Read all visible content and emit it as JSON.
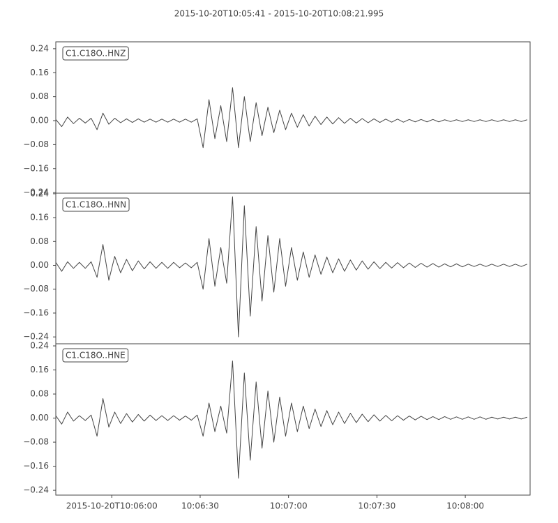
{
  "chart_data": [
    {
      "type": "line",
      "title": "2015-10-20T10:05:41  -  2015-10-20T10:08:21.995",
      "label": "C1.C18O..HNZ",
      "x": [
        0,
        2,
        4,
        6,
        8,
        10,
        12,
        14,
        16,
        18,
        20,
        22,
        24,
        26,
        28,
        30,
        32,
        34,
        36,
        38,
        40,
        42,
        44,
        46,
        48,
        50,
        52,
        54,
        56,
        58,
        60,
        62,
        64,
        66,
        68,
        70,
        72,
        74,
        76,
        78,
        80,
        82,
        84,
        86,
        88,
        90,
        92,
        94,
        96,
        98,
        100,
        102,
        104,
        106,
        108,
        110,
        112,
        114,
        116,
        118,
        120,
        122,
        124,
        126,
        128,
        130,
        132,
        134,
        136,
        138,
        140,
        142,
        144,
        146,
        148,
        150,
        152,
        154,
        156,
        158,
        160
      ],
      "values": [
        0.004,
        -0.02,
        0.012,
        -0.01,
        0.008,
        -0.008,
        0.008,
        -0.03,
        0.025,
        -0.012,
        0.008,
        -0.007,
        0.006,
        -0.006,
        0.006,
        -0.005,
        0.005,
        -0.005,
        0.005,
        -0.005,
        0.005,
        -0.005,
        0.005,
        -0.005,
        0.006,
        -0.09,
        0.07,
        -0.06,
        0.05,
        -0.07,
        0.11,
        -0.09,
        0.08,
        -0.07,
        0.06,
        -0.05,
        0.045,
        -0.04,
        0.035,
        -0.03,
        0.025,
        -0.022,
        0.02,
        -0.018,
        0.015,
        -0.013,
        0.012,
        -0.011,
        0.01,
        -0.009,
        0.008,
        -0.008,
        0.007,
        -0.007,
        0.006,
        -0.006,
        0.005,
        -0.005,
        0.005,
        -0.005,
        0.004,
        -0.004,
        0.004,
        -0.004,
        0.004,
        -0.004,
        0.003,
        -0.003,
        0.003,
        -0.003,
        0.003,
        -0.003,
        0.003,
        -0.003,
        0.003,
        -0.003,
        0.003,
        -0.003,
        0.003,
        -0.003,
        0.003
      ],
      "color": "#444444",
      "xlim": [
        0,
        160.995
      ],
      "ylim": [
        -0.242,
        0.263
      ],
      "yticks": [
        0.24,
        0.16,
        0.08,
        {
          "value": 0,
          "label": "0.00"
        },
        {
          "value": -0.08,
          "label": "−0.08"
        },
        {
          "value": -0.16,
          "label": "−0.16"
        },
        {
          "value": -0.24,
          "label": "−0.24"
        }
      ]
    },
    {
      "type": "line",
      "label": "C1.C18O..HNN",
      "x": [
        0,
        2,
        4,
        6,
        8,
        10,
        12,
        14,
        16,
        18,
        20,
        22,
        24,
        26,
        28,
        30,
        32,
        34,
        36,
        38,
        40,
        42,
        44,
        46,
        48,
        50,
        52,
        54,
        56,
        58,
        60,
        62,
        64,
        66,
        68,
        70,
        72,
        74,
        76,
        78,
        80,
        82,
        84,
        86,
        88,
        90,
        92,
        94,
        96,
        98,
        100,
        102,
        104,
        106,
        108,
        110,
        112,
        114,
        116,
        118,
        120,
        122,
        124,
        126,
        128,
        130,
        132,
        134,
        136,
        138,
        140,
        142,
        144,
        146,
        148,
        150,
        152,
        154,
        156,
        158,
        160
      ],
      "values": [
        0.01,
        -0.02,
        0.012,
        -0.01,
        0.01,
        -0.01,
        0.012,
        -0.04,
        0.07,
        -0.05,
        0.03,
        -0.025,
        0.02,
        -0.018,
        0.015,
        -0.012,
        0.012,
        -0.01,
        0.01,
        -0.01,
        0.01,
        -0.008,
        0.008,
        -0.008,
        0.01,
        -0.08,
        0.09,
        -0.07,
        0.06,
        -0.06,
        0.23,
        -0.24,
        0.2,
        -0.17,
        0.13,
        -0.12,
        0.1,
        -0.09,
        0.09,
        -0.07,
        0.06,
        -0.05,
        0.045,
        -0.04,
        0.035,
        -0.03,
        0.028,
        -0.025,
        0.022,
        -0.02,
        0.018,
        -0.016,
        0.015,
        -0.013,
        0.012,
        -0.011,
        0.01,
        -0.009,
        0.009,
        -0.008,
        0.008,
        -0.007,
        0.007,
        -0.006,
        0.006,
        -0.006,
        0.005,
        -0.005,
        0.005,
        -0.005,
        0.004,
        -0.004,
        0.004,
        -0.004,
        0.004,
        -0.004,
        0.004,
        -0.004,
        0.004,
        -0.004,
        0.004
      ],
      "color": "#444444",
      "xlim": [
        0,
        160.995
      ],
      "ylim": [
        -0.263,
        0.242
      ],
      "yticks": [
        0.24,
        0.16,
        0.08,
        {
          "value": 0,
          "label": "0.00"
        },
        {
          "value": -0.08,
          "label": "−0.08"
        },
        {
          "value": -0.16,
          "label": "−0.16"
        },
        {
          "value": -0.24,
          "label": "−0.24"
        }
      ]
    },
    {
      "type": "line",
      "label": "C1.C18O..HNE",
      "x": [
        0,
        2,
        4,
        6,
        8,
        10,
        12,
        14,
        16,
        18,
        20,
        22,
        24,
        26,
        28,
        30,
        32,
        34,
        36,
        38,
        40,
        42,
        44,
        46,
        48,
        50,
        52,
        54,
        56,
        58,
        60,
        62,
        64,
        66,
        68,
        70,
        72,
        74,
        76,
        78,
        80,
        82,
        84,
        86,
        88,
        90,
        92,
        94,
        96,
        98,
        100,
        102,
        104,
        106,
        108,
        110,
        112,
        114,
        116,
        118,
        120,
        122,
        124,
        126,
        128,
        130,
        132,
        134,
        136,
        138,
        140,
        142,
        144,
        146,
        148,
        150,
        152,
        154,
        156,
        158,
        160
      ],
      "values": [
        0.008,
        -0.02,
        0.02,
        -0.01,
        0.008,
        -0.008,
        0.01,
        -0.06,
        0.065,
        -0.03,
        0.02,
        -0.018,
        0.015,
        -0.013,
        0.012,
        -0.01,
        0.01,
        -0.008,
        0.008,
        -0.008,
        0.008,
        -0.007,
        0.007,
        -0.007,
        0.01,
        -0.06,
        0.05,
        -0.045,
        0.04,
        -0.05,
        0.19,
        -0.2,
        0.15,
        -0.14,
        0.12,
        -0.1,
        0.09,
        -0.08,
        0.07,
        -0.06,
        0.05,
        -0.045,
        0.04,
        -0.035,
        0.03,
        -0.028,
        0.025,
        -0.022,
        0.02,
        -0.018,
        0.016,
        -0.015,
        0.013,
        -0.012,
        0.011,
        -0.01,
        0.009,
        -0.009,
        0.008,
        -0.007,
        0.007,
        -0.006,
        0.006,
        -0.005,
        0.005,
        -0.005,
        0.005,
        -0.004,
        0.004,
        -0.004,
        0.004,
        -0.004,
        0.004,
        -0.004,
        0.003,
        -0.003,
        0.003,
        -0.003,
        0.003,
        -0.003,
        0.003
      ],
      "color": "#444444",
      "xlim": [
        0,
        160.995
      ],
      "ylim": [
        -0.256,
        0.247
      ],
      "yticks": [
        0.24,
        0.16,
        0.08,
        {
          "value": 0,
          "label": "0.00"
        },
        {
          "value": -0.08,
          "label": "−0.08"
        },
        {
          "value": -0.16,
          "label": "−0.16"
        },
        {
          "value": -0.24,
          "label": "−0.24"
        }
      ],
      "xticks": [
        {
          "value": 19,
          "label": "2015-10-20T10:06:00"
        },
        {
          "value": 49,
          "label": "10:06:30"
        },
        {
          "value": 79,
          "label": "10:07:00"
        },
        {
          "value": 109,
          "label": "10:07:30"
        },
        {
          "value": 139,
          "label": "10:08:00"
        }
      ]
    }
  ]
}
